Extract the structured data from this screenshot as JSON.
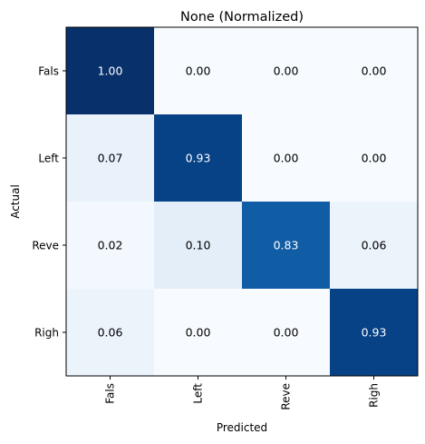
{
  "chart_data": {
    "type": "heatmap",
    "title": "None (Normalized)",
    "xlabel": "Predicted",
    "ylabel": "Actual",
    "x_categories": [
      "Fals",
      "Left",
      "Reve",
      "Righ"
    ],
    "y_categories": [
      "Fals",
      "Left",
      "Reve",
      "Righ"
    ],
    "values": [
      [
        1.0,
        0.0,
        0.0,
        0.0
      ],
      [
        0.07,
        0.93,
        0.0,
        0.0
      ],
      [
        0.02,
        0.1,
        0.83,
        0.06
      ],
      [
        0.06,
        0.0,
        0.0,
        0.93
      ]
    ],
    "value_format": "2dp",
    "colormap": "Blues",
    "vmin": 0,
    "vmax": 1,
    "grid": false,
    "legend": "none"
  }
}
